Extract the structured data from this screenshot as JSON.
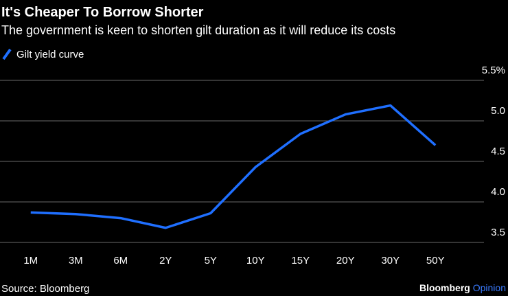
{
  "chart_data": {
    "type": "line",
    "title": "It's Cheaper To Borrow Shorter",
    "subtitle": "The government is keen to shorten gilt duration as it will reduce its costs",
    "categories": [
      "1M",
      "3M",
      "6M",
      "2Y",
      "5Y",
      "10Y",
      "15Y",
      "20Y",
      "30Y",
      "50Y"
    ],
    "series": [
      {
        "name": "Gilt yield curve",
        "color": "#1f6fff",
        "values": [
          3.87,
          3.85,
          3.8,
          3.68,
          3.86,
          4.43,
          4.84,
          5.08,
          5.19,
          4.7
        ]
      }
    ],
    "ylim": [
      3.5,
      5.5
    ],
    "yticks": [
      3.5,
      {
        "value": 4,
        "label": "4.0"
      },
      4.5,
      {
        "value": 5,
        "label": "5.0"
      },
      {
        "value": 5.5,
        "label": "5.5%"
      }
    ],
    "grid": true,
    "source": "Source: Bloomberg",
    "brand": "Bloomberg",
    "brand_suffix": "Opinion"
  }
}
